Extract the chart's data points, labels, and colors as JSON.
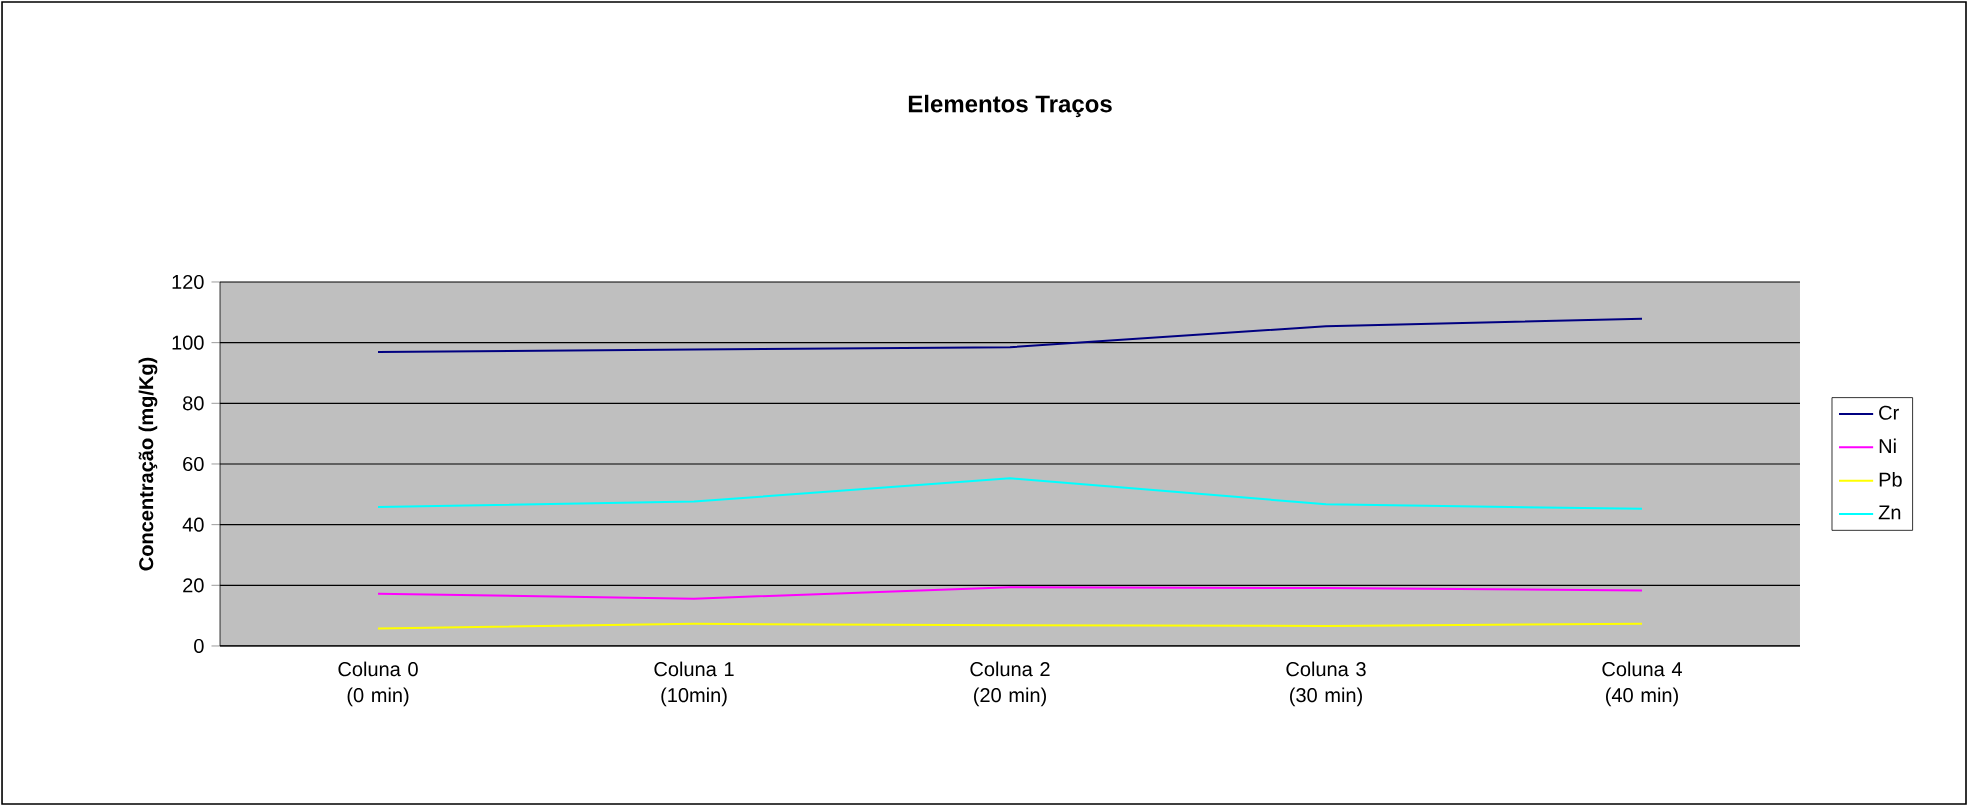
{
  "chart_data": {
    "type": "line",
    "title": "Elementos Traços",
    "ylabel": "Concentração (mg/Kg)",
    "categories": [
      "Coluna 0 (0 min)",
      "Coluna 1 (10min)",
      "Coluna 2 (20 min)",
      "Coluna 3 (30 min)",
      "Coluna 4 (40 min)"
    ],
    "series": [
      {
        "name": "Cr",
        "color": "#000080",
        "values": [
          96.9,
          97.7,
          98.5,
          105.4,
          107.9
        ]
      },
      {
        "name": "Ni",
        "color": "#ff00ff",
        "values": [
          17.2,
          15.6,
          19.4,
          19.1,
          18.3
        ]
      },
      {
        "name": "Pb",
        "color": "#ffff00",
        "values": [
          5.8,
          7.3,
          6.8,
          6.6,
          7.3
        ]
      },
      {
        "name": "Zn",
        "color": "#00ffff",
        "values": [
          45.8,
          47.6,
          55.3,
          46.7,
          45.2
        ]
      }
    ],
    "ylim": [
      0,
      120
    ],
    "yticks": [
      0,
      20,
      40,
      60,
      80,
      100,
      120
    ],
    "grid": "y",
    "legend": "right",
    "marker": "none",
    "line_style": "solid"
  }
}
